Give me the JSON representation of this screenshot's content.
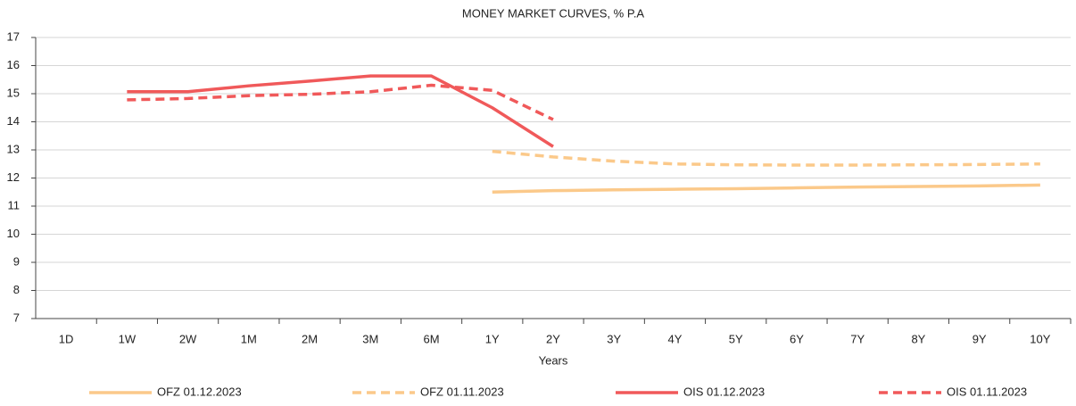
{
  "chart_data": {
    "type": "line",
    "title": "MONEY MARKET CURVES, % P.A",
    "x_label": "Years",
    "categories": [
      "1D",
      "1W",
      "2W",
      "1M",
      "2M",
      "3M",
      "6M",
      "1Y",
      "2Y",
      "3Y",
      "4Y",
      "5Y",
      "6Y",
      "7Y",
      "8Y",
      "9Y",
      "10Y"
    ],
    "series": [
      {
        "name": "OFZ 01.12.2023",
        "color": "#fbc98a",
        "style": "solid",
        "values": [
          null,
          null,
          null,
          null,
          null,
          null,
          null,
          11.5,
          11.55,
          11.58,
          11.6,
          11.62,
          11.65,
          11.68,
          11.7,
          11.72,
          11.75
        ]
      },
      {
        "name": "OFZ 01.11.2023",
        "color": "#fbc98a",
        "style": "dashed",
        "values": [
          null,
          null,
          null,
          null,
          null,
          null,
          null,
          12.95,
          12.75,
          12.6,
          12.5,
          12.47,
          12.46,
          12.46,
          12.47,
          12.48,
          12.5
        ]
      },
      {
        "name": "OIS 01.12.2023",
        "color": "#f0595a",
        "style": "solid",
        "values": [
          null,
          15.07,
          15.07,
          15.28,
          15.45,
          15.63,
          15.63,
          14.5,
          13.12,
          null,
          null,
          null,
          null,
          null,
          null,
          null,
          null
        ]
      },
      {
        "name": "OIS 01.11.2023",
        "color": "#f0595a",
        "style": "dashed",
        "values": [
          null,
          14.78,
          14.83,
          14.93,
          14.98,
          15.07,
          15.3,
          15.12,
          14.08,
          null,
          null,
          null,
          null,
          null,
          null,
          null,
          null
        ]
      }
    ],
    "ylim": [
      7,
      17
    ],
    "yticks": [
      7,
      8,
      9,
      10,
      11,
      12,
      13,
      14,
      15,
      16,
      17
    ],
    "grid": true,
    "legend": "bottom"
  }
}
